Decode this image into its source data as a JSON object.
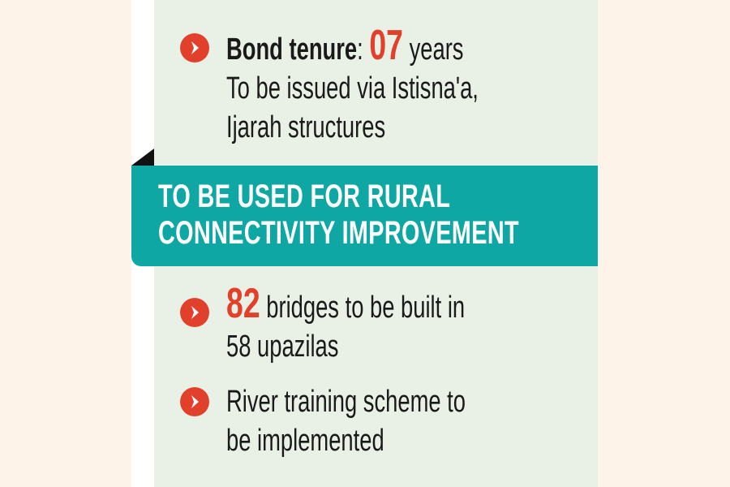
{
  "top": {
    "label": "Bond tenure",
    "colon": ":",
    "value": "07",
    "unit": "years",
    "line2": "To be issued via Istisna'a,",
    "line3": "Ijarah structures"
  },
  "banner": {
    "line1": "TO BE USED FOR RURAL",
    "line2": "CONNECTIVITY IMPROVEMENT"
  },
  "items": [
    {
      "value": "82",
      "line1": "bridges to be built in",
      "line2": "58 upazilas"
    },
    {
      "line1": "River training scheme to",
      "line2": "be implemented"
    }
  ],
  "colors": {
    "accent": "#e1402a",
    "banner": "#0fa7a4",
    "panel": "#e9f1e7",
    "background": "#fdf3e9"
  },
  "icons": [
    "chevron-right-circle-icon"
  ]
}
